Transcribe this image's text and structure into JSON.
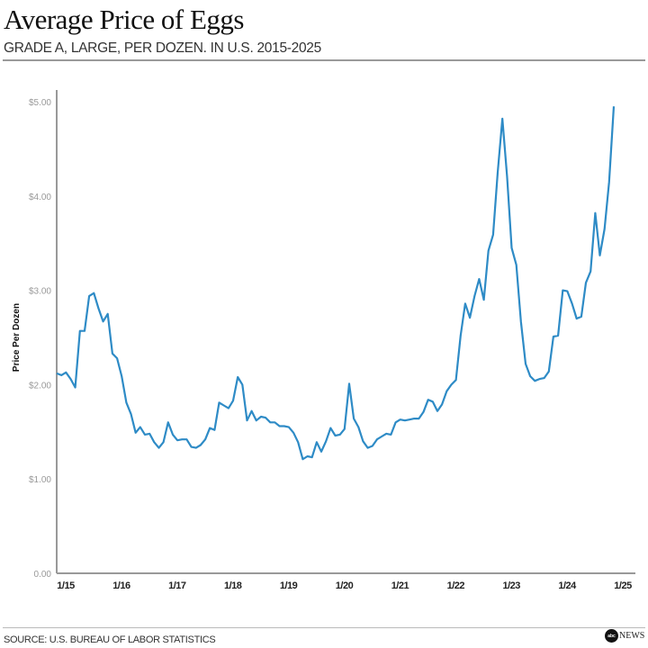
{
  "title": "Average Price of Eggs",
  "subtitle": "GRADE A, LARGE, PER DOZEN. IN U.S. 2015-2025",
  "source": "SOURCE: U.S. BUREAU OF LABOR STATISTICS",
  "logo": {
    "text": "abcNEWS"
  },
  "chart_data": {
    "type": "line",
    "title": "Average Price of Eggs",
    "subtitle": "GRADE A, LARGE, PER DOZEN. IN U.S. 2015-2025",
    "ylabel": "Price Per Dozen",
    "xlabel": "",
    "ylim": [
      0,
      5
    ],
    "yticks": [
      "0.00",
      "$1.00",
      "$2.00",
      "$3.00",
      "$4.00",
      "$5.00"
    ],
    "xticks": [
      "1/15",
      "1/16",
      "1/17",
      "1/18",
      "1/19",
      "1/20",
      "1/21",
      "1/22",
      "1/23",
      "1/24",
      "1/25"
    ],
    "x_start": "2015-01",
    "x_end": "2025-01",
    "frequency": "monthly",
    "grid": false,
    "line_color": "#2e8bc6",
    "values": [
      2.12,
      2.1,
      2.13,
      2.06,
      1.97,
      2.57,
      2.57,
      2.94,
      2.97,
      2.81,
      2.67,
      2.75,
      2.33,
      2.28,
      2.09,
      1.81,
      1.69,
      1.49,
      1.55,
      1.47,
      1.48,
      1.39,
      1.33,
      1.39,
      1.6,
      1.47,
      1.41,
      1.42,
      1.42,
      1.34,
      1.33,
      1.36,
      1.42,
      1.54,
      1.52,
      1.81,
      1.78,
      1.75,
      1.83,
      2.08,
      2.0,
      1.62,
      1.72,
      1.62,
      1.66,
      1.65,
      1.6,
      1.6,
      1.56,
      1.56,
      1.55,
      1.49,
      1.39,
      1.21,
      1.24,
      1.23,
      1.39,
      1.29,
      1.4,
      1.54,
      1.46,
      1.47,
      1.53,
      2.01,
      1.64,
      1.55,
      1.4,
      1.33,
      1.35,
      1.42,
      1.45,
      1.48,
      1.47,
      1.6,
      1.63,
      1.62,
      1.63,
      1.64,
      1.64,
      1.71,
      1.84,
      1.82,
      1.72,
      1.79,
      1.93,
      2.0,
      2.05,
      2.52,
      2.86,
      2.71,
      2.94,
      3.12,
      2.9,
      3.42,
      3.59,
      4.25,
      4.82,
      4.21,
      3.45,
      3.27,
      2.67,
      2.22,
      2.09,
      2.04,
      2.06,
      2.07,
      2.14,
      2.51,
      2.52,
      3.0,
      2.99,
      2.86,
      2.7,
      2.72,
      3.08,
      3.2,
      3.82,
      3.37,
      3.65,
      4.15,
      4.95
    ]
  }
}
